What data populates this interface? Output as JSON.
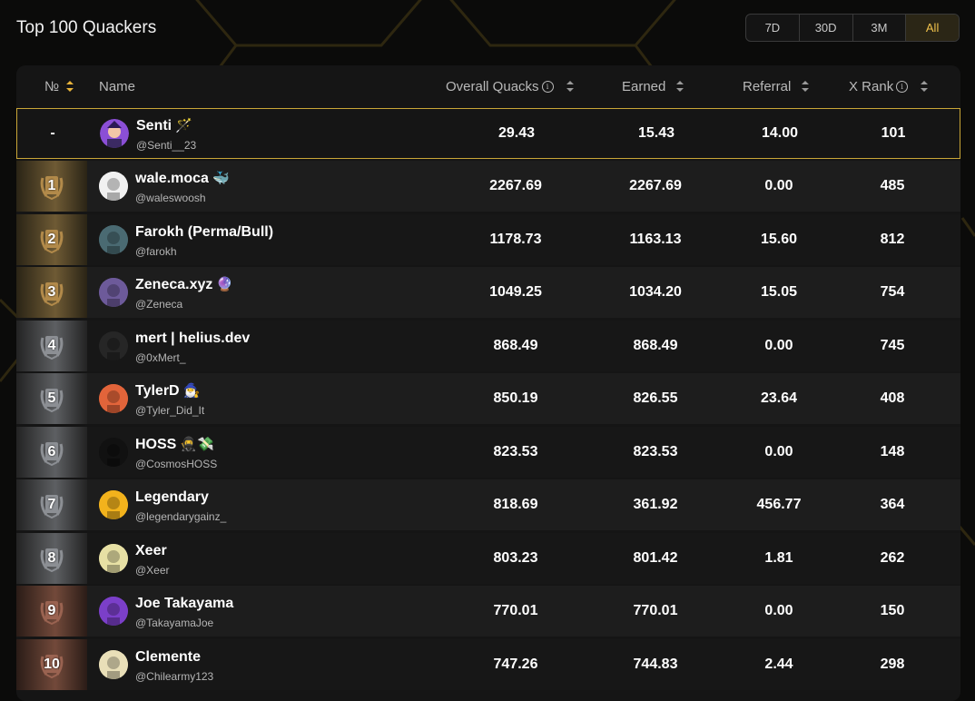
{
  "page": {
    "title": "Top 100 Quackers"
  },
  "range_tabs": [
    {
      "label": "7D",
      "active": false
    },
    {
      "label": "30D",
      "active": false
    },
    {
      "label": "3M",
      "active": false
    },
    {
      "label": "All",
      "active": true
    }
  ],
  "columns": {
    "rank": "№",
    "name": "Name",
    "overall": "Overall Quacks",
    "earned": "Earned",
    "referral": "Referral",
    "xrank": "X Rank"
  },
  "colors": {
    "accent": "#f0c14b",
    "highlight_border": "#c9a637"
  },
  "current_user": {
    "rank": "-",
    "name": "Senti",
    "emoji": "🪄",
    "handle": "@Senti__23",
    "overall": "29.43",
    "earned": "15.43",
    "referral": "14.00",
    "xrank": "101",
    "avatar_color": "#8b4fd6"
  },
  "rows": [
    {
      "rank": "1",
      "name": "wale.moca",
      "emoji": "🐳",
      "handle": "@waleswoosh",
      "overall": "2267.69",
      "earned": "2267.69",
      "referral": "0.00",
      "xrank": "485",
      "tier": "gold",
      "avatar_color": "#f1f1f1"
    },
    {
      "rank": "2",
      "name": "Farokh (Perma/Bull)",
      "emoji": "",
      "handle": "@farokh",
      "overall": "1178.73",
      "earned": "1163.13",
      "referral": "15.60",
      "xrank": "812",
      "tier": "gold",
      "avatar_color": "#4a6a72"
    },
    {
      "rank": "3",
      "name": "Zeneca.xyz",
      "emoji": "🔮",
      "handle": "@Zeneca",
      "overall": "1049.25",
      "earned": "1034.20",
      "referral": "15.05",
      "xrank": "754",
      "tier": "gold",
      "avatar_color": "#6d5a9a"
    },
    {
      "rank": "4",
      "name": "mert | helius.dev",
      "emoji": "",
      "handle": "@0xMert_",
      "overall": "868.49",
      "earned": "868.49",
      "referral": "0.00",
      "xrank": "745",
      "tier": "silver",
      "avatar_color": "#262626"
    },
    {
      "rank": "5",
      "name": "TylerD",
      "emoji": "🧙‍♂️",
      "handle": "@Tyler_Did_It",
      "overall": "850.19",
      "earned": "826.55",
      "referral": "23.64",
      "xrank": "408",
      "tier": "silver",
      "avatar_color": "#e2643a"
    },
    {
      "rank": "6",
      "name": "HOSS",
      "emoji": "🥷💸",
      "handle": "@CosmosHOSS",
      "overall": "823.53",
      "earned": "823.53",
      "referral": "0.00",
      "xrank": "148",
      "tier": "silver",
      "avatar_color": "#111111"
    },
    {
      "rank": "7",
      "name": "Legendary",
      "emoji": "",
      "handle": "@legendarygainz_",
      "overall": "818.69",
      "earned": "361.92",
      "referral": "456.77",
      "xrank": "364",
      "tier": "silver",
      "avatar_color": "#f2b21c"
    },
    {
      "rank": "8",
      "name": "Xeer",
      "emoji": "",
      "handle": "@Xeer",
      "overall": "803.23",
      "earned": "801.42",
      "referral": "1.81",
      "xrank": "262",
      "tier": "silver",
      "avatar_color": "#e7e0a4"
    },
    {
      "rank": "9",
      "name": "Joe Takayama",
      "emoji": "",
      "handle": "@TakayamaJoe",
      "overall": "770.01",
      "earned": "770.01",
      "referral": "0.00",
      "xrank": "150",
      "tier": "bronze",
      "avatar_color": "#7b3fc9"
    },
    {
      "rank": "10",
      "name": "Clemente",
      "emoji": "",
      "handle": "@Chilearmy123",
      "overall": "747.26",
      "earned": "744.83",
      "referral": "2.44",
      "xrank": "298",
      "tier": "bronze",
      "avatar_color": "#e9dfb8"
    }
  ]
}
